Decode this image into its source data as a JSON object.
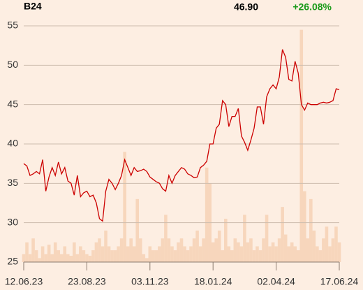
{
  "chart_data": {
    "type": "line",
    "title": "B24",
    "last_price": "46.90",
    "change": "+26.08%",
    "categories": [
      "12.06.23",
      null,
      null,
      null,
      null,
      null,
      null,
      null,
      null,
      null,
      null,
      null,
      null,
      null,
      null,
      null,
      null,
      null,
      null,
      null,
      "23.08.23",
      null,
      null,
      null,
      null,
      null,
      null,
      null,
      null,
      null,
      null,
      null,
      null,
      null,
      null,
      null,
      null,
      null,
      null,
      null,
      "03.11.23",
      null,
      null,
      null,
      null,
      null,
      null,
      null,
      null,
      null,
      null,
      null,
      null,
      null,
      null,
      null,
      null,
      null,
      null,
      null,
      "18.01.24",
      null,
      null,
      null,
      null,
      null,
      null,
      null,
      null,
      null,
      null,
      null,
      null,
      null,
      null,
      null,
      null,
      null,
      null,
      null,
      "02.04.24",
      null,
      null,
      null,
      null,
      null,
      null,
      null,
      null,
      null,
      null,
      null,
      null,
      null,
      null,
      null,
      null,
      null,
      null,
      null,
      "17.06.24"
    ],
    "values": [
      37.5,
      37.2,
      36,
      36.2,
      36.5,
      36.2,
      38,
      34,
      35.8,
      37,
      36,
      37.7,
      36.2,
      37,
      35.3,
      35,
      33.5,
      36,
      33.3,
      33.8,
      34,
      33.3,
      33.5,
      32.5,
      30.5,
      30.2,
      34,
      35.5,
      35,
      34.2,
      35,
      36,
      38,
      37,
      36,
      37,
      36.5,
      36.6,
      36.8,
      36.5,
      35.8,
      35.5,
      35.2,
      35,
      34.3,
      34,
      36,
      35,
      36,
      36.5,
      37,
      36.8,
      36.2,
      36,
      35.7,
      35.8,
      37,
      37.3,
      37.8,
      40,
      40,
      42,
      42.5,
      45.5,
      45,
      42.2,
      43.5,
      43.5,
      44.5,
      41,
      40.2,
      39.2,
      40.5,
      42,
      44.7,
      44.7,
      42.5,
      46,
      47,
      47.5,
      47,
      48.5,
      52,
      51,
      48.2,
      48,
      50.5,
      49,
      45,
      44.3,
      45.2,
      45,
      45,
      45,
      45.2,
      45.3,
      45.2,
      45.3,
      45.5,
      47,
      46.9
    ],
    "volume": [
      26,
      27.5,
      26,
      28,
      26.5,
      25.5,
      27,
      26,
      27.2,
      26,
      27.5,
      26.5,
      26,
      27,
      26,
      25.8,
      27.5,
      26,
      27,
      26.5,
      26,
      25.8,
      26.5,
      27.5,
      28,
      27,
      29,
      27,
      26.5,
      26.5,
      27,
      28,
      39,
      27,
      28,
      27,
      33,
      28,
      26,
      25.5,
      27,
      26.5,
      26.5,
      27,
      28,
      31,
      28,
      27,
      26.5,
      27.5,
      28,
      27,
      26.5,
      27,
      28,
      29,
      27,
      28,
      37,
      35,
      27.5,
      28,
      29,
      26.5,
      30.5,
      27,
      26.5,
      28,
      27.5,
      27,
      31,
      27.5,
      28,
      26.5,
      27,
      26.5,
      28,
      31,
      27,
      27.5,
      27,
      28,
      32,
      28.5,
      27,
      27.5,
      27,
      26.5,
      54.5,
      34,
      28,
      33,
      29,
      27,
      26.5,
      28,
      29.5,
      27,
      28,
      29.5,
      27.5
    ],
    "color": "#cc0000",
    "volume_color": "#f7d6bc",
    "change_color": "#1a9a1a",
    "ylim": [
      25,
      55
    ],
    "yticks": [
      25,
      30,
      35,
      40,
      45,
      50,
      55
    ],
    "grid": true
  }
}
